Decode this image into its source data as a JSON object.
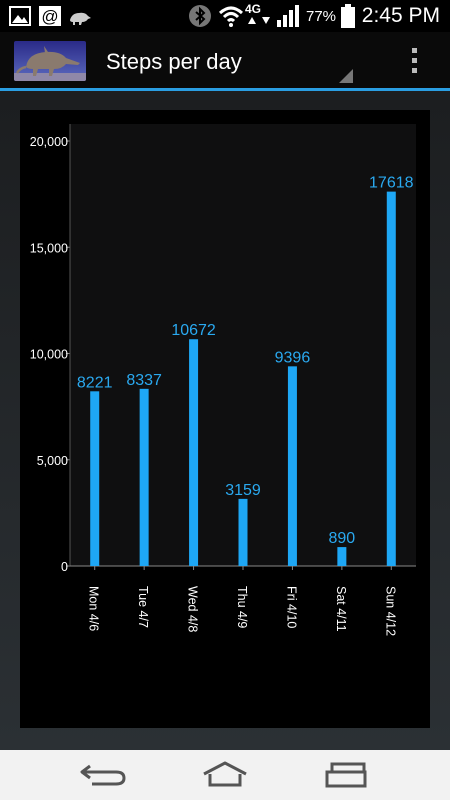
{
  "status_bar": {
    "network": "4G",
    "battery_percent": "77%",
    "time": "2:45 PM",
    "icons": [
      "picture-icon",
      "email-at-icon",
      "aardvark-notification-icon",
      "bluetooth-icon",
      "wifi-icon",
      "lte-data-icon",
      "signal-bars-icon",
      "battery-icon"
    ]
  },
  "action_bar": {
    "title": "Steps per day",
    "logo": "aardvark-logo",
    "accent_color": "#2a9ee2"
  },
  "nav_bar": {
    "icons": [
      "back-icon",
      "home-icon",
      "recent-apps-icon"
    ]
  },
  "chart_data": {
    "type": "bar",
    "categories": [
      "Mon 4/6",
      "Tue 4/7",
      "Wed 4/8",
      "Thu 4/9",
      "Fri 4/10",
      "Sat 4/11",
      "Sun 4/12"
    ],
    "values": [
      8221,
      8337,
      10672,
      3159,
      9396,
      890,
      17618
    ],
    "data_labels": [
      "8221",
      "8337",
      "10672",
      "3159",
      "9396",
      "890",
      "17618"
    ],
    "yticks": [
      0,
      5000,
      10000,
      15000,
      20000
    ],
    "ytick_labels": [
      "0",
      "5,000",
      "10,000",
      "15,000",
      "20,000"
    ],
    "ylim": [
      0,
      20000
    ],
    "bar_color": "#1ea7f5",
    "label_color": "#2aa9f0",
    "plot_bg": "#0f0f10",
    "grid": false,
    "legend": "none"
  }
}
